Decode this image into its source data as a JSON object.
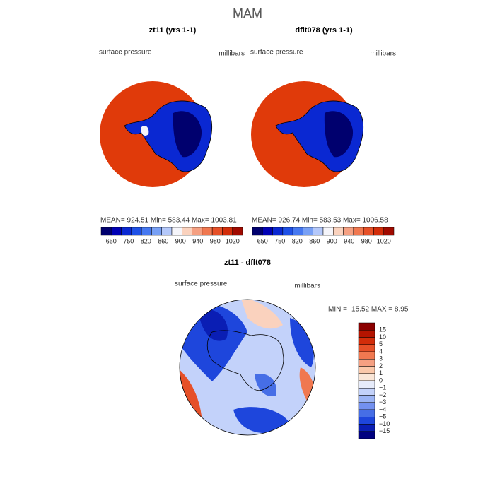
{
  "title": "MAM",
  "panels": [
    {
      "title": "zt11 (yrs 1-1)",
      "left_label": "surface pressure",
      "right_label": "millibars",
      "stats": "MEAN= 924.51   Min= 583.44   Max= 1003.81"
    },
    {
      "title": "dflt078 (yrs 1-1)",
      "left_label": "surface pressure",
      "right_label": "millibars",
      "stats": "MEAN= 926.74   Min= 583.53   Max= 1006.58"
    }
  ],
  "top_colorbar": {
    "labels": [
      "650",
      "750",
      "820",
      "860",
      "900",
      "940",
      "980",
      "1020"
    ],
    "colors": [
      "#00006e",
      "#0000b4",
      "#0a28d2",
      "#1e50e6",
      "#4678f0",
      "#78a0f5",
      "#b4c8fa",
      "#f5f5fa",
      "#fad2be",
      "#f5a082",
      "#f07850",
      "#e65028",
      "#d22d0a",
      "#a00a00"
    ]
  },
  "diff": {
    "title": "zt11 - dflt078",
    "left_label": "surface pressure",
    "right_label": "millibars",
    "stats": "MIN = -15.52 MAX =   8.95",
    "colorbar": {
      "labels": [
        "15",
        "10",
        "5",
        "4",
        "3",
        "2",
        "1",
        "0",
        "−1",
        "−2",
        "−3",
        "−4",
        "−5",
        "−10",
        "−15"
      ],
      "colors": [
        "#8b0000",
        "#b41400",
        "#d22d0a",
        "#e65028",
        "#f07850",
        "#f5a082",
        "#fac8aa",
        "#fae6d7",
        "#e6ebfa",
        "#c3d2fa",
        "#9bb4f5",
        "#7391f0",
        "#466ee6",
        "#1e46dc",
        "#0a1eb4",
        "#000080"
      ]
    }
  }
}
